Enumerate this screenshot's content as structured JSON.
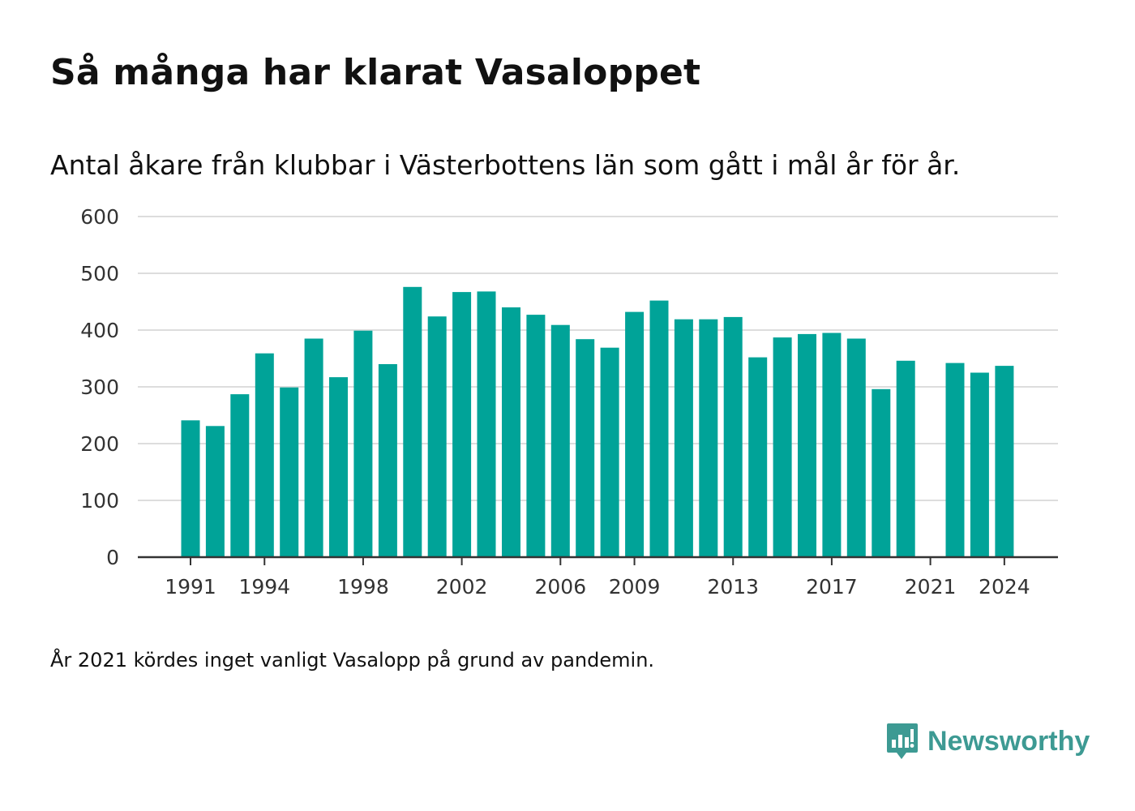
{
  "title": "Så många har klarat Vasaloppet",
  "subtitle": "Antal åkare från klubbar i Västerbottens län som gått i mål år för år.",
  "footnote": "År 2021 kördes inget vanligt Vasalopp på grund av pandemin.",
  "brand": {
    "name": "Newsworthy",
    "icon": "newsworthy-logo-icon",
    "color": "#3d9a93"
  },
  "chart_data": {
    "type": "bar",
    "title": "Så många har klarat Vasaloppet",
    "subtitle": "Antal åkare från klubbar i Västerbottens län som gått i mål år för år.",
    "xlabel": "",
    "ylabel": "",
    "bar_color": "#00a398",
    "ylim": [
      0,
      600
    ],
    "yticks": [
      0,
      100,
      200,
      300,
      400,
      500,
      600
    ],
    "xtick_labels": [
      "1991",
      "1994",
      "1998",
      "2002",
      "2006",
      "2009",
      "2013",
      "2017",
      "2021",
      "2024"
    ],
    "grid": true,
    "categories": [
      1991,
      1992,
      1993,
      1994,
      1995,
      1996,
      1997,
      1998,
      1999,
      2000,
      2001,
      2002,
      2003,
      2004,
      2005,
      2006,
      2007,
      2008,
      2009,
      2010,
      2011,
      2012,
      2013,
      2014,
      2015,
      2016,
      2017,
      2018,
      2019,
      2020,
      2021,
      2022,
      2023,
      2024
    ],
    "values": [
      241,
      231,
      287,
      359,
      299,
      385,
      317,
      399,
      340,
      476,
      424,
      467,
      468,
      440,
      427,
      409,
      384,
      369,
      432,
      452,
      419,
      419,
      423,
      352,
      387,
      393,
      395,
      385,
      296,
      346,
      null,
      342,
      325,
      337
    ]
  }
}
